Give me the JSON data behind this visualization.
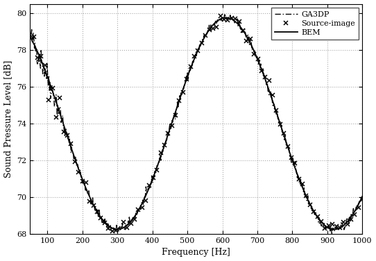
{
  "xlabel": "Frequency [Hz]",
  "ylabel": "Sound Pressure Level [dB]",
  "xlim": [
    50,
    1000
  ],
  "ylim": [
    68,
    80.5
  ],
  "xticks": [
    100,
    200,
    300,
    400,
    500,
    600,
    700,
    800,
    900,
    1000
  ],
  "yticks": [
    68,
    70,
    72,
    74,
    76,
    78,
    80
  ],
  "legend": [
    "GA3DP",
    "Source-image",
    "BEM"
  ],
  "bg_color": "#ffffff",
  "grid_color": "#aaaaaa",
  "period": 620.0,
  "f_min1": 300.0,
  "base": 74.0,
  "amplitude": 5.75,
  "n_points": 600,
  "freq_start": 50,
  "freq_end": 1000,
  "n_markers": 90,
  "low_freq_noise_end": 150,
  "low_freq_noise_amp": 0.6
}
